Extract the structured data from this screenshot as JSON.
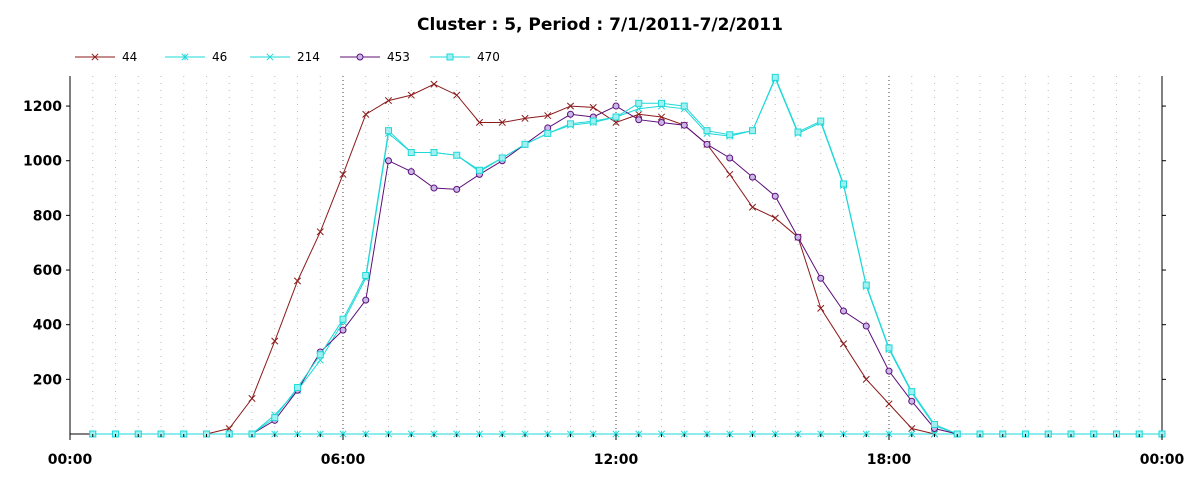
{
  "chart_data": {
    "type": "line",
    "title": "Cluster : 5, Period : 7/1/2011-7/2/2011",
    "xlabel": "",
    "ylabel": "",
    "xlim": [
      "00:00",
      "24:00"
    ],
    "ylim": [
      0,
      1310
    ],
    "x_ticks": [
      "00:00",
      "06:00",
      "12:00",
      "18:00",
      "00:00"
    ],
    "y_ticks": [
      200,
      400,
      600,
      800,
      1000,
      1200
    ],
    "grid": true,
    "legend_position": "top-left",
    "x": [
      "00:30",
      "01:00",
      "01:30",
      "02:00",
      "02:30",
      "03:00",
      "03:30",
      "04:00",
      "04:30",
      "05:00",
      "05:30",
      "06:00",
      "06:30",
      "07:00",
      "07:30",
      "08:00",
      "08:30",
      "09:00",
      "09:30",
      "10:00",
      "10:30",
      "11:00",
      "11:30",
      "12:00",
      "12:30",
      "13:00",
      "13:30",
      "14:00",
      "14:30",
      "15:00",
      "15:30",
      "16:00",
      "16:30",
      "17:00",
      "17:30",
      "18:00",
      "18:30",
      "19:00",
      "19:30",
      "20:00",
      "20:30",
      "21:00",
      "21:30",
      "22:00",
      "22:30",
      "23:00",
      "23:30",
      "24:00"
    ],
    "series": [
      {
        "name": "44",
        "color": "#8b1a1a",
        "marker": "x",
        "values": [
          0,
          0,
          0,
          0,
          0,
          0,
          20,
          130,
          340,
          560,
          740,
          950,
          1170,
          1220,
          1240,
          1280,
          1240,
          1140,
          1140,
          1155,
          1165,
          1200,
          1195,
          1140,
          1170,
          1160,
          1130,
          1060,
          950,
          830,
          790,
          720,
          460,
          330,
          200,
          110,
          20,
          0,
          0,
          0,
          0,
          0,
          0,
          0,
          0,
          0,
          0,
          0
        ]
      },
      {
        "name": "46",
        "color": "#1fd8d8",
        "marker": "asterisk",
        "values": [
          0,
          0,
          0,
          0,
          0,
          0,
          0,
          0,
          0,
          0,
          0,
          0,
          0,
          0,
          0,
          0,
          0,
          0,
          0,
          0,
          0,
          0,
          0,
          0,
          0,
          0,
          0,
          0,
          0,
          0,
          0,
          0,
          0,
          0,
          0,
          0,
          0,
          0,
          0,
          0,
          0,
          0,
          0,
          0,
          0,
          0,
          0,
          0
        ]
      },
      {
        "name": "214",
        "color": "#1fd8d8",
        "marker": "x",
        "values": [
          0,
          0,
          0,
          0,
          0,
          0,
          0,
          0,
          70,
          160,
          270,
          410,
          570,
          1100,
          1030,
          1030,
          1020,
          960,
          1010,
          1060,
          1100,
          1130,
          1140,
          1160,
          1190,
          1200,
          1190,
          1100,
          1090,
          1110,
          1300,
          1100,
          1140,
          910,
          540,
          310,
          150,
          30,
          0,
          0,
          0,
          0,
          0,
          0,
          0,
          0,
          0,
          0
        ]
      },
      {
        "name": "453",
        "color": "#5c0f7a",
        "marker": "circle",
        "values": [
          0,
          0,
          0,
          0,
          0,
          0,
          0,
          0,
          50,
          160,
          300,
          380,
          490,
          1000,
          960,
          900,
          895,
          950,
          1000,
          1060,
          1120,
          1170,
          1160,
          1200,
          1150,
          1140,
          1130,
          1060,
          1010,
          940,
          870,
          720,
          570,
          450,
          395,
          230,
          120,
          20,
          0,
          0,
          0,
          0,
          0,
          0,
          0,
          0,
          0,
          0
        ]
      },
      {
        "name": "470",
        "color": "#1fd8d8",
        "marker": "square",
        "values": [
          0,
          0,
          0,
          0,
          0,
          0,
          0,
          0,
          60,
          170,
          290,
          420,
          580,
          1110,
          1030,
          1030,
          1020,
          965,
          1010,
          1060,
          1100,
          1135,
          1145,
          1160,
          1210,
          1210,
          1200,
          1110,
          1095,
          1110,
          1305,
          1105,
          1145,
          915,
          545,
          315,
          155,
          35,
          0,
          0,
          0,
          0,
          0,
          0,
          0,
          0,
          0,
          0
        ]
      }
    ]
  }
}
